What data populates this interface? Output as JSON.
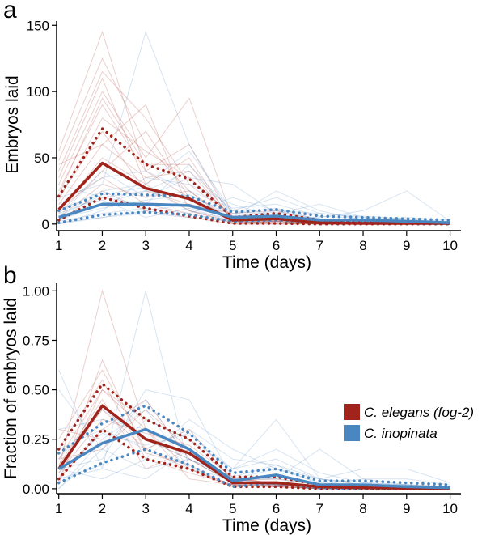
{
  "colors": {
    "elegans": "#a0231c",
    "inopinata": "#4a86c0"
  },
  "legend": {
    "items": [
      {
        "key": "elegans",
        "label": "C. elegans (fog-2)"
      },
      {
        "key": "inopinata",
        "label": "C. inopinata"
      }
    ]
  },
  "chart_data": [
    {
      "panel": "a",
      "type": "line",
      "xlabel": "Time (days)",
      "ylabel": "Embryos laid",
      "x": [
        1,
        2,
        3,
        4,
        5,
        6,
        7,
        8,
        9,
        10
      ],
      "xlim": [
        0.95,
        10.25
      ],
      "ylim": [
        -5,
        152
      ],
      "yticks": [
        0,
        50,
        100,
        150
      ],
      "yticklabels": [
        "0",
        "50",
        "100",
        "150"
      ],
      "series": [
        {
          "group": "elegans",
          "stat": "mean",
          "values": [
            11,
            46,
            27,
            19,
            3,
            4,
            1,
            0.5,
            0.5,
            0.5
          ]
        },
        {
          "group": "elegans",
          "stat": "upper",
          "values": [
            21,
            72,
            45,
            34,
            5,
            8,
            3,
            1,
            1,
            1
          ]
        },
        {
          "group": "elegans",
          "stat": "lower",
          "values": [
            3,
            20,
            12,
            6,
            0.5,
            0.5,
            0,
            0,
            0,
            0
          ]
        },
        {
          "group": "inopinata",
          "stat": "mean",
          "values": [
            5,
            15,
            15,
            14,
            5,
            6,
            3,
            3,
            2,
            1
          ]
        },
        {
          "group": "inopinata",
          "stat": "upper",
          "values": [
            10,
            23,
            22,
            21,
            9,
            11,
            6,
            5,
            4,
            3
          ]
        },
        {
          "group": "inopinata",
          "stat": "lower",
          "values": [
            1,
            7,
            9,
            7,
            2,
            3,
            1,
            1,
            0.5,
            0
          ]
        }
      ],
      "individuals": [
        {
          "group": "elegans",
          "values": [
            55,
            145,
            40,
            20,
            3,
            2,
            1,
            0,
            0,
            0
          ]
        },
        {
          "group": "elegans",
          "values": [
            48,
            125,
            60,
            25,
            2,
            3,
            1,
            0,
            0,
            0
          ]
        },
        {
          "group": "elegans",
          "values": [
            40,
            115,
            80,
            30,
            5,
            4,
            2,
            1,
            0,
            0
          ]
        },
        {
          "group": "elegans",
          "values": [
            35,
            110,
            30,
            10,
            1,
            1,
            0,
            0,
            0,
            0
          ]
        },
        {
          "group": "elegans",
          "values": [
            30,
            100,
            50,
            95,
            4,
            2,
            0,
            0,
            0,
            0
          ]
        },
        {
          "group": "elegans",
          "values": [
            25,
            90,
            40,
            60,
            2,
            3,
            1,
            0,
            0,
            0
          ]
        },
        {
          "group": "elegans",
          "values": [
            20,
            70,
            25,
            15,
            8,
            10,
            2,
            0,
            0,
            0
          ]
        },
        {
          "group": "elegans",
          "values": [
            15,
            60,
            35,
            40,
            3,
            5,
            0,
            0,
            0,
            0
          ]
        },
        {
          "group": "elegans",
          "values": [
            10,
            50,
            30,
            50,
            1,
            2,
            0,
            0,
            0,
            0
          ]
        },
        {
          "group": "elegans",
          "values": [
            8,
            40,
            70,
            20,
            2,
            1,
            0,
            0,
            0,
            0
          ]
        },
        {
          "group": "elegans",
          "values": [
            5,
            30,
            20,
            25,
            0,
            0,
            0,
            0,
            0,
            0
          ]
        },
        {
          "group": "elegans",
          "values": [
            2,
            25,
            10,
            5,
            0,
            0,
            0,
            0,
            0,
            0
          ]
        },
        {
          "group": "elegans",
          "values": [
            12,
            35,
            15,
            8,
            1,
            2,
            0,
            0,
            0,
            0
          ]
        },
        {
          "group": "elegans",
          "values": [
            18,
            80,
            55,
            35,
            6,
            4,
            1,
            0,
            0,
            0
          ]
        },
        {
          "group": "elegans",
          "values": [
            45,
            60,
            90,
            10,
            2,
            3,
            0,
            0,
            0,
            0
          ]
        },
        {
          "group": "elegans",
          "values": [
            22,
            95,
            45,
            45,
            3,
            1,
            0,
            0,
            0,
            0
          ]
        },
        {
          "group": "inopinata",
          "values": [
            20,
            30,
            145,
            60,
            5,
            10,
            4,
            3,
            1,
            0
          ]
        },
        {
          "group": "inopinata",
          "values": [
            10,
            25,
            30,
            55,
            10,
            20,
            8,
            5,
            3,
            2
          ]
        },
        {
          "group": "inopinata",
          "values": [
            5,
            40,
            20,
            35,
            30,
            8,
            15,
            5,
            2,
            1
          ]
        },
        {
          "group": "inopinata",
          "values": [
            3,
            15,
            25,
            20,
            5,
            25,
            10,
            3,
            5,
            3
          ]
        },
        {
          "group": "inopinata",
          "values": [
            0,
            10,
            35,
            30,
            15,
            5,
            5,
            10,
            25,
            2
          ]
        },
        {
          "group": "inopinata",
          "values": [
            8,
            20,
            15,
            45,
            8,
            12,
            3,
            2,
            1,
            1
          ]
        },
        {
          "group": "inopinata",
          "values": [
            1,
            5,
            10,
            15,
            3,
            5,
            2,
            1,
            0,
            0
          ]
        },
        {
          "group": "inopinata",
          "values": [
            15,
            35,
            40,
            25,
            12,
            15,
            6,
            4,
            3,
            2
          ]
        },
        {
          "group": "inopinata",
          "values": [
            4,
            12,
            18,
            22,
            6,
            9,
            4,
            2,
            1,
            0
          ]
        },
        {
          "group": "inopinata",
          "values": [
            6,
            22,
            28,
            10,
            4,
            3,
            2,
            1,
            1,
            0
          ]
        },
        {
          "group": "inopinata",
          "values": [
            2,
            8,
            12,
            8,
            20,
            10,
            8,
            6,
            4,
            1
          ]
        },
        {
          "group": "inopinata",
          "values": [
            12,
            18,
            5,
            12,
            2,
            4,
            1,
            0,
            0,
            0
          ]
        },
        {
          "group": "inopinata",
          "values": [
            30,
            20,
            25,
            40,
            10,
            6,
            3,
            2,
            1,
            1
          ]
        },
        {
          "group": "inopinata",
          "values": [
            0,
            5,
            8,
            5,
            2,
            2,
            1,
            1,
            0,
            0
          ]
        }
      ]
    },
    {
      "panel": "b",
      "type": "line",
      "xlabel": "Time (days)",
      "ylabel": "Fraction of embryos laid",
      "x": [
        1,
        2,
        3,
        4,
        5,
        6,
        7,
        8,
        9,
        10
      ],
      "xlim": [
        0.95,
        10.25
      ],
      "ylim": [
        -0.025,
        1.03
      ],
      "yticks": [
        0,
        0.25,
        0.5,
        0.75,
        1.0
      ],
      "yticklabels": [
        "0.00",
        "0.25",
        "0.50",
        "0.75",
        "1.00"
      ],
      "series": [
        {
          "group": "elegans",
          "stat": "mean",
          "values": [
            0.1,
            0.42,
            0.25,
            0.18,
            0.03,
            0.03,
            0.01,
            0.005,
            0.003,
            0.002
          ]
        },
        {
          "group": "elegans",
          "stat": "upper",
          "values": [
            0.2,
            0.53,
            0.35,
            0.25,
            0.06,
            0.06,
            0.02,
            0.01,
            0.01,
            0.01
          ]
        },
        {
          "group": "elegans",
          "stat": "lower",
          "values": [
            0.05,
            0.3,
            0.15,
            0.1,
            0.01,
            0.01,
            0,
            0,
            0,
            0
          ]
        },
        {
          "group": "inopinata",
          "stat": "mean",
          "values": [
            0.1,
            0.23,
            0.3,
            0.2,
            0.04,
            0.07,
            0.02,
            0.02,
            0.01,
            0.005
          ]
        },
        {
          "group": "inopinata",
          "stat": "upper",
          "values": [
            0.18,
            0.33,
            0.42,
            0.28,
            0.08,
            0.1,
            0.04,
            0.04,
            0.03,
            0.02
          ]
        },
        {
          "group": "inopinata",
          "stat": "lower",
          "values": [
            0.03,
            0.13,
            0.2,
            0.12,
            0.01,
            0.03,
            0.005,
            0,
            0,
            0
          ]
        }
      ],
      "individuals": [
        {
          "group": "elegans",
          "values": [
            0.1,
            1.0,
            0.3,
            0.05,
            0.02,
            0.01,
            0,
            0,
            0,
            0
          ]
        },
        {
          "group": "elegans",
          "values": [
            0.25,
            0.6,
            0.2,
            0.1,
            0.01,
            0.02,
            0,
            0,
            0,
            0
          ]
        },
        {
          "group": "elegans",
          "values": [
            0.15,
            0.5,
            0.35,
            0.25,
            0.05,
            0.03,
            0.01,
            0,
            0,
            0
          ]
        },
        {
          "group": "elegans",
          "values": [
            0.2,
            0.55,
            0.15,
            0.08,
            0.02,
            0.01,
            0,
            0,
            0,
            0
          ]
        },
        {
          "group": "elegans",
          "values": [
            0.05,
            0.3,
            0.45,
            0.15,
            0.03,
            0.02,
            0,
            0,
            0,
            0
          ]
        },
        {
          "group": "elegans",
          "values": [
            0.1,
            0.4,
            0.2,
            0.3,
            0.04,
            0.05,
            0.02,
            0,
            0,
            0
          ]
        },
        {
          "group": "elegans",
          "values": [
            0.08,
            0.35,
            0.28,
            0.22,
            0.06,
            0.02,
            0.01,
            0,
            0,
            0
          ]
        },
        {
          "group": "elegans",
          "values": [
            0.3,
            0.25,
            0.25,
            0.15,
            0.03,
            0.04,
            0,
            0,
            0,
            0
          ]
        },
        {
          "group": "elegans",
          "values": [
            0.12,
            0.45,
            0.1,
            0.2,
            0.02,
            0.01,
            0,
            0,
            0,
            0
          ]
        },
        {
          "group": "elegans",
          "values": [
            0.02,
            0.65,
            0.18,
            0.12,
            0.01,
            0.02,
            0,
            0,
            0,
            0
          ]
        },
        {
          "group": "elegans",
          "values": [
            0.15,
            0.2,
            0.4,
            0.2,
            0.05,
            0.03,
            0.01,
            0,
            0,
            0
          ]
        },
        {
          "group": "elegans",
          "values": [
            0.05,
            0.5,
            0.3,
            0.1,
            0.02,
            0.02,
            0,
            0,
            0,
            0
          ]
        },
        {
          "group": "inopinata",
          "values": [
            0.6,
            0.1,
            0.05,
            0.2,
            0.02,
            0.02,
            0.01,
            0,
            0,
            0
          ]
        },
        {
          "group": "inopinata",
          "values": [
            0.5,
            0.2,
            0.1,
            0.15,
            0.03,
            0.02,
            0,
            0,
            0,
            0
          ]
        },
        {
          "group": "inopinata",
          "values": [
            0.05,
            0.1,
            1.0,
            0.1,
            0.05,
            0.02,
            0,
            0,
            0,
            0
          ]
        },
        {
          "group": "inopinata",
          "values": [
            0.1,
            0.15,
            0.5,
            0.45,
            0.05,
            0.1,
            0.03,
            0.02,
            0.02,
            0.01
          ]
        },
        {
          "group": "inopinata",
          "values": [
            0.2,
            0.3,
            0.2,
            0.3,
            0.15,
            0.12,
            0.05,
            0.03,
            0.02,
            0.01
          ]
        },
        {
          "group": "inopinata",
          "values": [
            0,
            0.25,
            0.4,
            0.1,
            0.1,
            0.35,
            0.05,
            0.02,
            0.01,
            0.01
          ]
        },
        {
          "group": "inopinata",
          "values": [
            0.15,
            0.4,
            0.25,
            0.15,
            0.05,
            0.05,
            0.2,
            0.05,
            0.05,
            0.02
          ]
        },
        {
          "group": "inopinata",
          "values": [
            0.05,
            0.12,
            0.35,
            0.25,
            0.1,
            0.15,
            0.05,
            0.1,
            0.1,
            0.03
          ]
        },
        {
          "group": "inopinata",
          "values": [
            0.1,
            0.05,
            0.15,
            0.35,
            0.2,
            0.1,
            0.05,
            0.02,
            0.01,
            0
          ]
        },
        {
          "group": "inopinata",
          "values": [
            0.3,
            0.35,
            0.3,
            0.2,
            0.05,
            0.05,
            0.02,
            0.01,
            0,
            0
          ]
        },
        {
          "group": "inopinata",
          "values": [
            0,
            0.2,
            0.45,
            0.15,
            0.06,
            0.12,
            0.02,
            0.05,
            0.02,
            0
          ]
        },
        {
          "group": "inopinata",
          "values": [
            0.08,
            0.28,
            0.22,
            0.28,
            0.1,
            0.2,
            0.08,
            0.03,
            0.02,
            0.01
          ]
        }
      ]
    }
  ]
}
